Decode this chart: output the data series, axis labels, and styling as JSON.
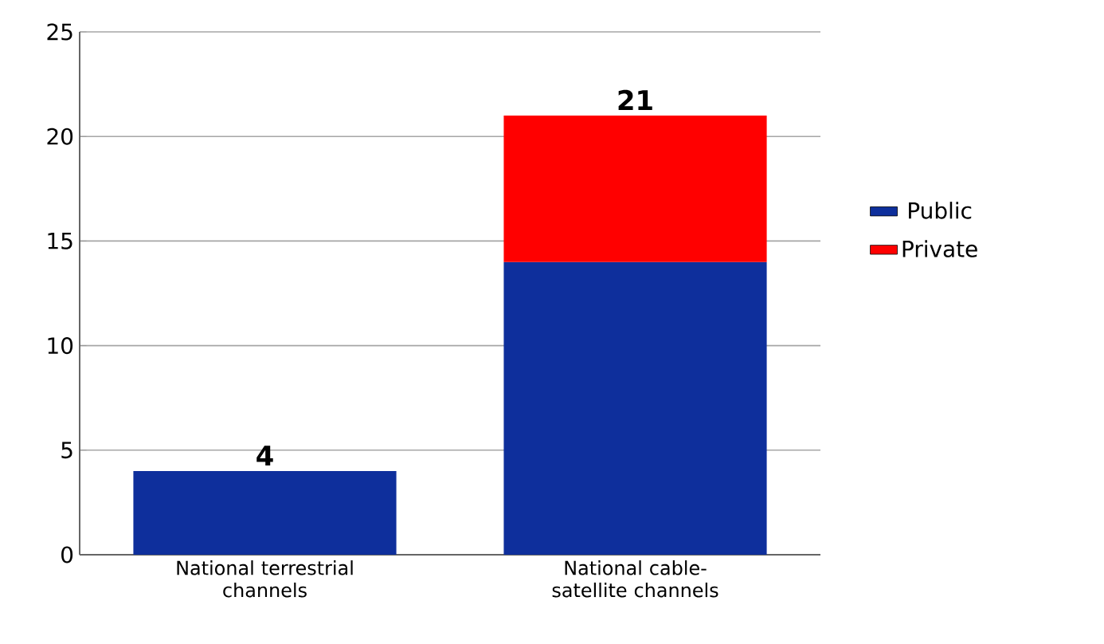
{
  "chart_data": {
    "type": "bar",
    "stacked": true,
    "categories": [
      "National terrestrial channels",
      "National cable-satellite channels"
    ],
    "series": [
      {
        "name": "Public",
        "color": "#0e2f9c",
        "values": [
          4,
          14
        ]
      },
      {
        "name": "Private",
        "color": "#ff0000",
        "values": [
          null,
          7
        ]
      }
    ],
    "totals": [
      "4",
      "21"
    ],
    "ylim": [
      0,
      25
    ],
    "yticks": [
      0,
      5,
      10,
      15,
      20,
      25
    ],
    "grid": "y",
    "legend": "right"
  }
}
